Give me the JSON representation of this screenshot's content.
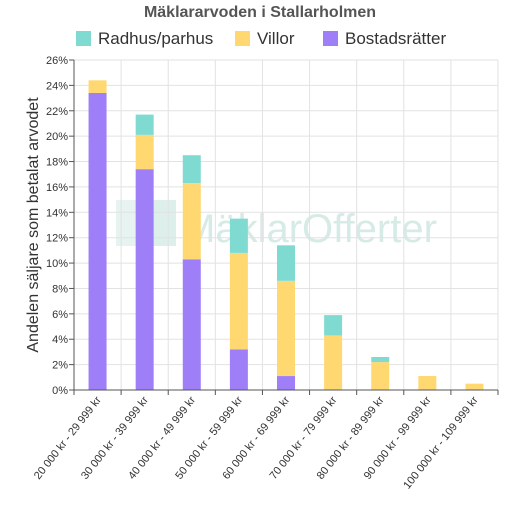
{
  "chart_data": {
    "type": "bar",
    "stacked": true,
    "title": "Mäklararvoden i Stallarholmen",
    "ylabel": "Andelen säljare som betalat arvodet",
    "xlabel": "",
    "ylim": [
      0,
      26
    ],
    "y_ticks": [
      "0%",
      "2%",
      "4%",
      "6%",
      "8%",
      "10%",
      "12%",
      "14%",
      "16%",
      "18%",
      "20%",
      "22%",
      "24%",
      "26%"
    ],
    "grid": true,
    "legend_position": "top",
    "categories": [
      "20 000 kr - 29 999 kr",
      "30 000 kr - 39 999 kr",
      "40 000 kr - 49 999 kr",
      "50 000 kr - 59 999 kr",
      "60 000 kr - 69 999 kr",
      "70 000 kr - 79 999 kr",
      "80 000 kr - 89 999 kr",
      "90 000 kr - 99 999 kr",
      "100 000 kr - 109 999 kr"
    ],
    "series": [
      {
        "name": "Bostadsrätter",
        "color": "#9f7ff8",
        "values": [
          23.4,
          17.4,
          10.3,
          3.2,
          1.1,
          0,
          0,
          0,
          0
        ]
      },
      {
        "name": "Villor",
        "color": "#ffd872",
        "values": [
          1.0,
          2.7,
          6.0,
          7.6,
          7.5,
          4.3,
          2.2,
          1.1,
          0.5
        ]
      },
      {
        "name": "Radhus/parhus",
        "color": "#7fdbd2",
        "values": [
          0,
          1.6,
          2.2,
          2.7,
          2.8,
          1.6,
          0.4,
          0,
          0
        ]
      }
    ],
    "legend_order": [
      "Radhus/parhus",
      "Villor",
      "Bostadsrätter"
    ],
    "watermark": "MäklarOfferter"
  }
}
